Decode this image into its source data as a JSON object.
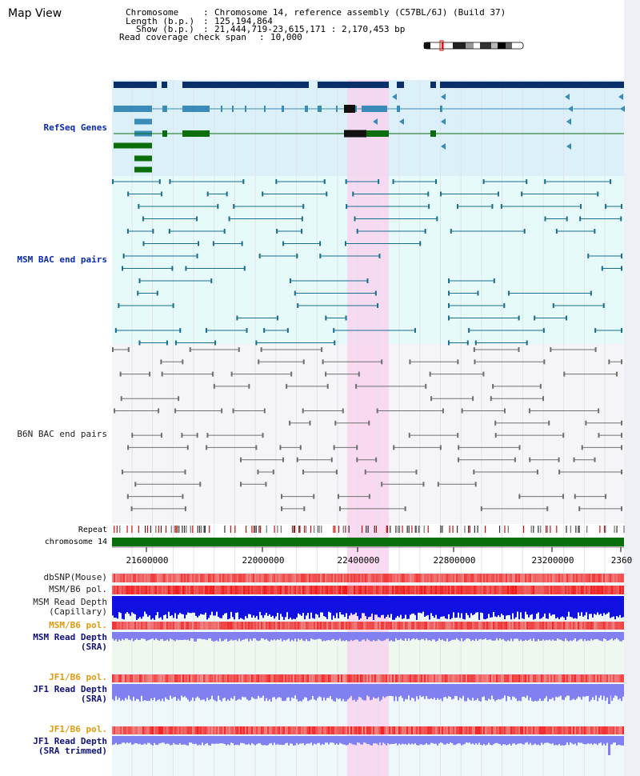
{
  "title": "Map View",
  "info": {
    "chromosome_key": "Chromosome",
    "chromosome_value": "Chromosome 14, reference assembly (C57BL/6J) (Build 37)",
    "length_key": "Length (b.p.)",
    "length_value": "125,194,864",
    "show_key": "Show (b.p.)",
    "show_value": "21,444,719-23,615,171 : 2,170,453 bp",
    "coverage_key": "Read coverage check span",
    "coverage_value": "10,000"
  },
  "tracks": {
    "refseq": "RefSeq Genes",
    "msm_bac": "MSM BAC end pairs",
    "b6n_bac": "B6N BAC end pairs",
    "repeat": "Repeat",
    "chromosome": "chromosome 14",
    "dbsnp": "dbSNP(Mouse)",
    "msm_b6_pol_1": "MSM/B6 pol.",
    "msm_depth_cap_1": "MSM Read Depth",
    "msm_depth_cap_2": "(Capillary)",
    "msm_b6_pol_2": "MSM/B6 pol.",
    "msm_depth_sra_1": "MSM Read Depth",
    "msm_depth_sra_2": "(SRA)",
    "jf1_b6_pol_1": "JF1/B6 pol.",
    "jf1_depth_sra_1": "JF1 Read Depth",
    "jf1_depth_sra_2": "(SRA)",
    "jf1_b6_pol_2": "JF1/B6 pol.",
    "jf1_depth_trim_1": "JF1 Read Depth",
    "jf1_depth_trim_2": "(SRA trimmed)"
  },
  "axis": {
    "ticks": [
      "21600000",
      "22000000",
      "22400000",
      "22800000",
      "23200000",
      "2360"
    ]
  },
  "colors": {
    "refseq_bg": "#dcf0fa",
    "msm_bg": "#e6fafa",
    "b6n_bg": "#f5f5f8",
    "highlight": "#f8d4ee",
    "gene_dark": "#0b2f6a",
    "gene_mid": "#3a8bb8",
    "gene_green": "#0a6e0a",
    "bac_msm": "#1a6e8e",
    "bac_b6n": "#707070",
    "chromosome_bar": "#0a6e0a",
    "depth_blue": "#1010e0",
    "depth_light": "#8080f0"
  }
}
